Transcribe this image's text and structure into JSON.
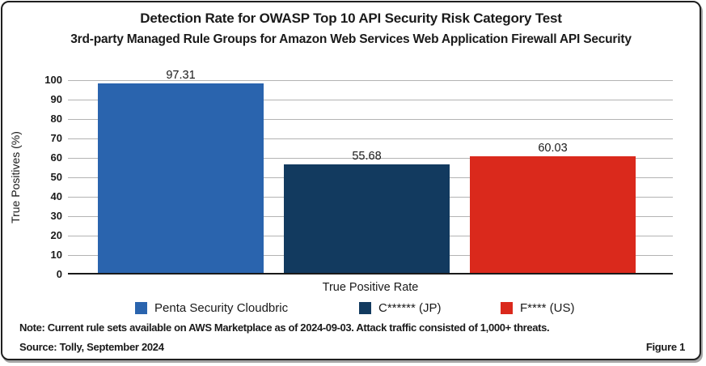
{
  "figure": {
    "title": "Detection Rate for OWASP Top 10 API Security Risk Category Test",
    "subtitle": "3rd-party Managed Rule Groups for Amazon Web Services Web Application Firewall API Security",
    "note": "Note: Current rule sets available on AWS Marketplace as of 2024-09-03. Attack traffic consisted of 1,000+ threats.",
    "source": "Source: Tolly, September 2024",
    "figure_label": "Figure 1"
  },
  "chart_data": {
    "type": "bar",
    "title": "Detection Rate for OWASP Top 10 API Security Risk Category Test",
    "subtitle": "3rd-party Managed Rule Groups for Amazon Web Services Web Application Firewall API Security",
    "categories": [
      "Penta Security Cloudbric",
      "C****** (JP)",
      "F**** (US)"
    ],
    "values": [
      97.31,
      55.68,
      60.03
    ],
    "value_labels": [
      "97.31",
      "55.68",
      "60.03"
    ],
    "colors": [
      "#2a64ae",
      "#123a5f",
      "#da291c"
    ],
    "xlabel": "True Positive Rate",
    "ylabel": "True Positives (%)",
    "ylim": [
      0,
      100
    ],
    "yticks": [
      0,
      10,
      20,
      30,
      40,
      50,
      60,
      70,
      80,
      90,
      100
    ],
    "grid": true,
    "gridline_color": "#b3b3b3",
    "axis_color": "#1a1a1a",
    "legend_position": "bottom"
  }
}
